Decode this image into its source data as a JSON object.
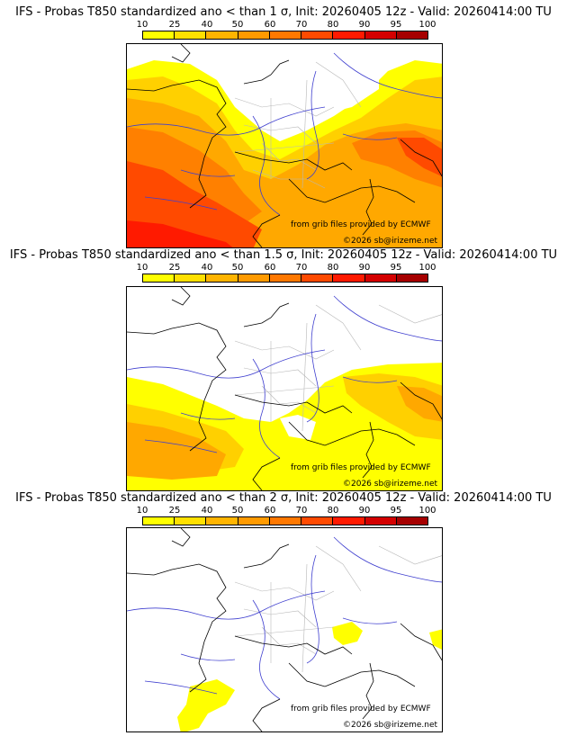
{
  "panels": [
    {
      "title": "IFS - Probas T850  standardized ano < than 1 σ, Init: 20260405 12z - Valid: 20260414:00 TU",
      "threshold": "1 σ"
    },
    {
      "title": "IFS - Probas T850  standardized ano < than 1.5 σ, Init: 20260405 12z - Valid: 20260414:00 TU",
      "threshold": "1.5 σ"
    },
    {
      "title": "IFS - Probas T850  standardized ano < than 2 σ, Init: 20260405 12z - Valid: 20260414:00 TU",
      "threshold": "2 σ"
    }
  ],
  "colorbar": {
    "ticks": [
      "10",
      "25",
      "40",
      "50",
      "60",
      "70",
      "80",
      "90",
      "95",
      "100"
    ],
    "colors": [
      "#ffff00",
      "#ffe000",
      "#ffb400",
      "#ff9a00",
      "#ff7800",
      "#ff4a00",
      "#ff1a00",
      "#d40000",
      "#a60000"
    ]
  },
  "credits": {
    "source": "from grib files provided by ECMWF",
    "copyright": "©2026 sb@irizeme.net"
  },
  "colors": {
    "border": "#000000",
    "river": "#3f3fcf",
    "admin": "#b8b8b8"
  }
}
